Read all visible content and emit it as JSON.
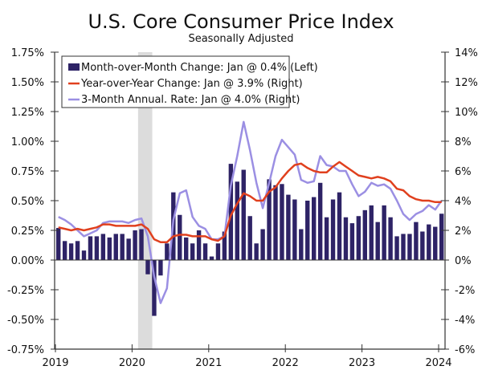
{
  "chart_data": {
    "type": "bar+line",
    "title": "U.S. Core Consumer Price Index",
    "subtitle": "Seasonally Adjusted",
    "x_tick_labels": [
      "2019",
      "2020",
      "2021",
      "2022",
      "2023",
      "2024"
    ],
    "left_axis": {
      "ylim": [
        -0.75,
        1.75
      ],
      "tick_labels": [
        "1.75%",
        "1.50%",
        "1.25%",
        "1.00%",
        "0.75%",
        "0.50%",
        "0.25%",
        "0.00%",
        "-0.25%",
        "-0.50%",
        "-0.75%"
      ],
      "tick_values": [
        1.75,
        1.5,
        1.25,
        1.0,
        0.75,
        0.5,
        0.25,
        0.0,
        -0.25,
        -0.5,
        -0.75
      ]
    },
    "right_axis": {
      "ylim": [
        -6,
        14
      ],
      "tick_labels": [
        "14%",
        "12%",
        "10%",
        "8%",
        "6%",
        "4%",
        "2%",
        "0%",
        "-2%",
        "-4%",
        "-6%"
      ],
      "tick_values": [
        14,
        12,
        10,
        8,
        6,
        4,
        2,
        0,
        -2,
        -4,
        -6
      ]
    },
    "x_start": "2019-01",
    "months": 61,
    "recession_shading": {
      "start_month_index": 13,
      "end_month_index": 15,
      "color": "#dcdcdc"
    },
    "legend": {
      "placement": "top-left",
      "entries": [
        "Month-over-Month Change: Jan @ 0.4% (Left)",
        "Year-over-Year Change: Jan @ 3.9% (Right)",
        "3-Month Annual. Rate: Jan @ 4.0% (Right)"
      ]
    },
    "series": [
      {
        "name": "Month-over-Month Change",
        "axis": "left",
        "kind": "bar",
        "color": "#2e2366",
        "values": [
          0.27,
          0.16,
          0.14,
          0.16,
          0.08,
          0.2,
          0.2,
          0.22,
          0.19,
          0.22,
          0.22,
          0.18,
          0.25,
          0.26,
          -0.12,
          -0.47,
          -0.13,
          0.14,
          0.57,
          0.38,
          0.19,
          0.14,
          0.25,
          0.14,
          0.03,
          0.14,
          0.24,
          0.81,
          0.66,
          0.76,
          0.37,
          0.14,
          0.26,
          0.68,
          0.63,
          0.64,
          0.55,
          0.51,
          0.26,
          0.5,
          0.53,
          0.65,
          0.36,
          0.51,
          0.57,
          0.36,
          0.31,
          0.37,
          0.42,
          0.46,
          0.32,
          0.46,
          0.36,
          0.2,
          0.22,
          0.22,
          0.32,
          0.24,
          0.3,
          0.28,
          0.39
        ]
      },
      {
        "name": "Year-over-Year Change",
        "axis": "right",
        "kind": "line",
        "color": "#e0401e",
        "values": [
          2.2,
          2.1,
          2.0,
          2.1,
          2.0,
          2.1,
          2.2,
          2.4,
          2.4,
          2.3,
          2.3,
          2.3,
          2.3,
          2.4,
          2.1,
          1.4,
          1.2,
          1.2,
          1.6,
          1.7,
          1.7,
          1.6,
          1.6,
          1.6,
          1.4,
          1.3,
          1.6,
          3.0,
          3.8,
          4.5,
          4.3,
          4.0,
          4.0,
          4.6,
          4.9,
          5.5,
          6.0,
          6.4,
          6.5,
          6.2,
          6.0,
          5.9,
          5.9,
          6.3,
          6.6,
          6.3,
          6.0,
          5.7,
          5.6,
          5.5,
          5.6,
          5.5,
          5.3,
          4.8,
          4.7,
          4.3,
          4.1,
          4.0,
          4.0,
          3.9,
          3.9
        ]
      },
      {
        "name": "3-Month Annual. Rate",
        "axis": "right",
        "kind": "line",
        "color": "#9b8fe3",
        "values": [
          2.9,
          2.7,
          2.4,
          2.0,
          1.6,
          1.8,
          2.0,
          2.5,
          2.6,
          2.6,
          2.6,
          2.5,
          2.7,
          2.8,
          1.6,
          -1.1,
          -2.9,
          -1.9,
          2.7,
          4.5,
          4.7,
          2.9,
          2.3,
          2.1,
          1.4,
          1.4,
          1.6,
          5.0,
          7.0,
          9.3,
          7.4,
          5.2,
          3.5,
          5.2,
          7.0,
          8.1,
          7.6,
          7.1,
          5.4,
          5.2,
          5.3,
          7.0,
          6.4,
          6.3,
          6.0,
          6.0,
          5.1,
          4.3,
          4.6,
          5.2,
          5.0,
          5.1,
          4.8,
          4.0,
          3.1,
          2.7,
          3.1,
          3.3,
          3.7,
          3.4,
          4.0
        ]
      }
    ]
  }
}
